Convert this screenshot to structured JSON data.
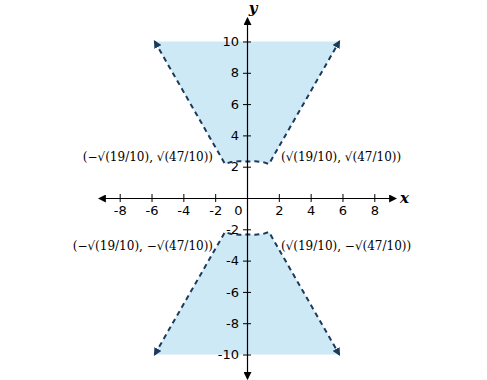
{
  "chart_data": {
    "type": "region",
    "x_label": "x",
    "y_label": "y",
    "xlim": [
      -9.3,
      9.3
    ],
    "ylim": [
      -11.5,
      11.5
    ],
    "xticks": [
      -8,
      -6,
      -4,
      -2,
      0,
      2,
      4,
      6,
      8
    ],
    "yticks": [
      -10,
      -8,
      -6,
      -4,
      -2,
      2,
      4,
      6,
      8,
      10
    ],
    "series": [
      {
        "x": [
          -5.8,
          -1.38,
          -1.0,
          -0.5,
          0,
          0.5,
          1.0,
          1.38,
          5.8
        ],
        "values": [
          10,
          2.17,
          2.3,
          2.35,
          2.33,
          2.35,
          2.3,
          2.17,
          10
        ],
        "color": "#cde9f5",
        "line_style": "dashed",
        "marker": "arrow"
      },
      {
        "x": [
          -5.8,
          -1.38,
          -1.0,
          -0.5,
          0,
          0.5,
          1.0,
          1.38,
          5.8
        ],
        "values": [
          -10,
          -2.17,
          -2.3,
          -2.35,
          -2.33,
          -2.35,
          -2.3,
          -2.17,
          -10
        ],
        "color": "#cde9f5",
        "line_style": "dashed",
        "marker": "arrow"
      }
    ],
    "annotations": [
      {
        "text": "(−√(19/10), √(47/10))",
        "x": -1.38,
        "y": 2.17
      },
      {
        "text": "(√(19/10), √(47/10))",
        "x": 1.38,
        "y": 2.17
      },
      {
        "text": "(−√(19/10), −√(47/10))",
        "x": -1.38,
        "y": -2.17
      },
      {
        "text": "(√(19/10), −√(47/10))",
        "x": 1.38,
        "y": -2.17
      }
    ]
  }
}
